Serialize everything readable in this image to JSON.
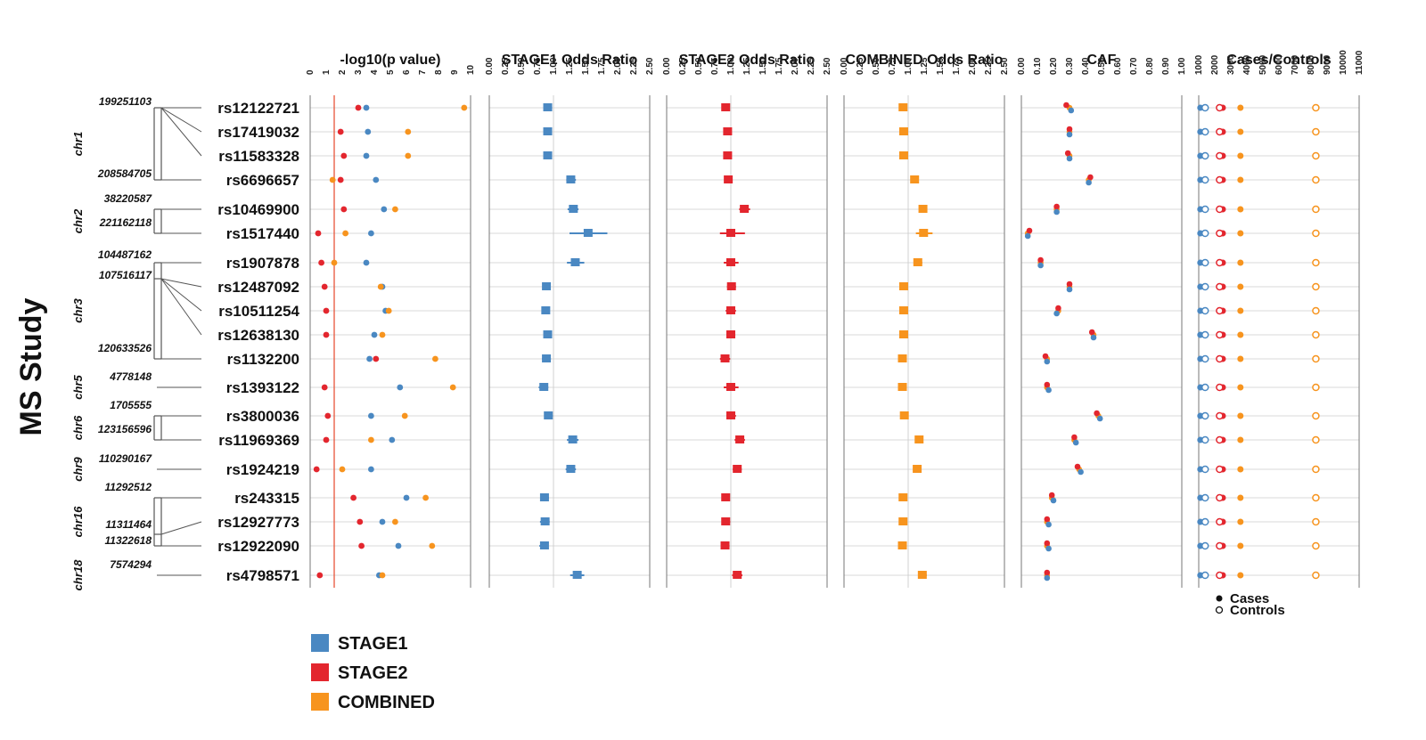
{
  "study_label": "MS Study",
  "colors": {
    "stage1": "#4a88c2",
    "stage2": "#e3262e",
    "combined": "#f7941e",
    "threshold": "#e8553a",
    "axis": "#777777",
    "grid": "#d9d9d9"
  },
  "legend": [
    {
      "label": "STAGE1",
      "color": "#4a88c2"
    },
    {
      "label": "STAGE2",
      "color": "#e3262e"
    },
    {
      "label": "COMBINED",
      "color": "#f7941e"
    }
  ],
  "cases_controls_legend": {
    "cases": "Cases",
    "controls": "Controls"
  },
  "chromosomes": [
    {
      "name": "chr1",
      "labels": [
        {
          "text": "199251103",
          "row": 0
        },
        {
          "text": "208584705",
          "row": 3
        }
      ]
    },
    {
      "name": "chr2",
      "labels": [
        {
          "text": "38220587",
          "row": 4
        },
        {
          "text": "221162118",
          "row": 5
        }
      ]
    },
    {
      "name": "chr3",
      "labels": [
        {
          "text": "104487162",
          "row": 6
        },
        {
          "text": "107516117",
          "row": 7
        },
        {
          "text": "120633526",
          "row": 10
        }
      ]
    },
    {
      "name": "chr5",
      "labels": [
        {
          "text": "4778148",
          "row": 11
        }
      ]
    },
    {
      "name": "chr6",
      "labels": [
        {
          "text": "1705555",
          "row": 12
        },
        {
          "text": "123156596",
          "row": 13
        }
      ]
    },
    {
      "name": "chr9",
      "labels": [
        {
          "text": "110290167",
          "row": 14
        }
      ]
    },
    {
      "name": "chr16",
      "labels": [
        {
          "text": "11292512",
          "row": 15
        },
        {
          "text": "11311464",
          "row": 16
        },
        {
          "text": "11322618",
          "row": 17
        }
      ]
    },
    {
      "name": "chr18",
      "labels": [
        {
          "text": "7574294",
          "row": 18
        }
      ]
    }
  ],
  "chart_data": [
    {
      "type": "scatter",
      "title": "-log10(p value)",
      "xlim": [
        0,
        10
      ],
      "xticks": [
        "0",
        "1",
        "2",
        "3",
        "4",
        "5",
        "6",
        "7",
        "8",
        "9",
        "10"
      ],
      "threshold": 1.5,
      "categories": [
        "rs12122721",
        "rs17419032",
        "rs11583328",
        "rs6696657",
        "rs10469900",
        "rs1517440",
        "rs1907878",
        "rs12487092",
        "rs10511254",
        "rs12638130",
        "rs1132200",
        "rs1393122",
        "rs3800036",
        "rs11969369",
        "rs1924219",
        "rs243315",
        "rs12927773",
        "rs12922090",
        "rs4798571"
      ],
      "series": [
        {
          "name": "STAGE1",
          "values": [
            3.5,
            3.6,
            3.5,
            4.1,
            4.6,
            3.8,
            3.5,
            4.5,
            4.7,
            4.0,
            3.7,
            5.6,
            3.8,
            5.1,
            3.8,
            6.0,
            4.5,
            5.5,
            4.3
          ]
        },
        {
          "name": "STAGE2",
          "values": [
            3.0,
            1.9,
            2.1,
            1.9,
            2.1,
            0.5,
            0.7,
            0.9,
            1.0,
            1.0,
            4.1,
            0.9,
            1.1,
            1.0,
            0.4,
            2.7,
            3.1,
            3.2,
            0.6
          ]
        },
        {
          "name": "COMBINED",
          "values": [
            9.6,
            6.1,
            6.1,
            1.4,
            5.3,
            2.2,
            1.5,
            4.4,
            4.9,
            4.5,
            7.8,
            8.9,
            5.9,
            3.8,
            2.0,
            7.2,
            5.3,
            7.6,
            4.5
          ]
        }
      ]
    },
    {
      "type": "scatter",
      "title": "STAGE1 Odds Ratio",
      "xlim": [
        0,
        2.5
      ],
      "xticks": [
        "0.00",
        "0.25",
        "0.50",
        "0.75",
        "1.00",
        "1.25",
        "1.50",
        "1.75",
        "2.00",
        "2.25",
        "2.50"
      ],
      "reference": 1.0,
      "series": [
        {
          "name": "STAGE1",
          "values": [
            0.91,
            0.91,
            0.91,
            1.27,
            1.31,
            1.54,
            1.34,
            0.89,
            0.88,
            0.91,
            0.89,
            0.85,
            0.92,
            1.3,
            1.27,
            0.86,
            0.87,
            0.86,
            1.37
          ],
          "ci_low": [
            0.85,
            0.86,
            0.86,
            1.2,
            1.22,
            1.25,
            1.21,
            0.84,
            0.82,
            0.86,
            0.82,
            0.77,
            0.86,
            1.21,
            1.19,
            0.8,
            0.79,
            0.78,
            1.26
          ],
          "ci_high": [
            0.98,
            0.97,
            0.96,
            1.35,
            1.39,
            1.84,
            1.48,
            0.95,
            0.94,
            0.97,
            0.96,
            0.92,
            0.99,
            1.39,
            1.35,
            0.93,
            0.94,
            0.92,
            1.48
          ]
        }
      ]
    },
    {
      "type": "scatter",
      "title": "STAGE2 Odds Ratio",
      "xlim": [
        0,
        2.5
      ],
      "xticks": [
        "0.00",
        "0.25",
        "0.50",
        "0.75",
        "1.00",
        "1.25",
        "1.50",
        "1.75",
        "2.00",
        "2.25",
        "2.50"
      ],
      "reference": 1.0,
      "series": [
        {
          "name": "STAGE2",
          "values": [
            0.92,
            0.95,
            0.95,
            0.96,
            1.21,
            1.0,
            1.0,
            1.01,
            1.0,
            1.0,
            0.91,
            1.0,
            1.0,
            1.14,
            1.1,
            0.92,
            0.92,
            0.91,
            1.1
          ],
          "ci_low": [
            0.87,
            0.9,
            0.9,
            0.91,
            1.13,
            0.83,
            0.89,
            0.94,
            0.92,
            0.93,
            0.83,
            0.89,
            0.93,
            1.06,
            1.03,
            0.86,
            0.86,
            0.85,
            1.02
          ],
          "ci_high": [
            0.98,
            1.01,
            1.01,
            1.02,
            1.3,
            1.22,
            1.12,
            1.08,
            1.08,
            1.07,
            0.99,
            1.12,
            1.08,
            1.22,
            1.17,
            0.98,
            0.99,
            0.98,
            1.18
          ]
        }
      ]
    },
    {
      "type": "scatter",
      "title": "COMBINED Odds Ratio",
      "xlim": [
        0,
        2.5
      ],
      "xticks": [
        "0.00",
        "0.25",
        "0.50",
        "0.75",
        "1.00",
        "1.25",
        "1.50",
        "1.75",
        "2.00",
        "2.25",
        "2.50"
      ],
      "reference": 1.0,
      "series": [
        {
          "name": "COMBINED",
          "values": [
            0.92,
            0.93,
            0.93,
            1.1,
            1.23,
            1.24,
            1.15,
            0.93,
            0.93,
            0.93,
            0.91,
            0.91,
            0.94,
            1.17,
            1.14,
            0.92,
            0.92,
            0.91,
            1.22
          ],
          "ci_low": [
            0.89,
            0.9,
            0.9,
            1.06,
            1.18,
            1.12,
            1.09,
            0.89,
            0.89,
            0.89,
            0.87,
            0.86,
            0.9,
            1.12,
            1.09,
            0.88,
            0.88,
            0.87,
            1.16
          ],
          "ci_high": [
            0.96,
            0.97,
            0.96,
            1.14,
            1.28,
            1.38,
            1.22,
            0.97,
            0.97,
            0.97,
            0.96,
            0.95,
            0.98,
            1.22,
            1.19,
            0.96,
            0.96,
            0.95,
            1.29
          ]
        }
      ]
    },
    {
      "type": "scatter",
      "title": "CAF",
      "xlim": [
        0,
        1
      ],
      "xticks": [
        "0.00",
        "0.10",
        "0.20",
        "0.30",
        "0.40",
        "0.50",
        "0.60",
        "0.70",
        "0.80",
        "0.90",
        "1.00"
      ],
      "series": [
        {
          "name": "STAGE1",
          "values": [
            0.31,
            0.3,
            0.3,
            0.42,
            0.22,
            0.04,
            0.12,
            0.3,
            0.22,
            0.45,
            0.16,
            0.17,
            0.49,
            0.34,
            0.37,
            0.2,
            0.17,
            0.17,
            0.16
          ]
        },
        {
          "name": "STAGE2",
          "values": [
            0.28,
            0.3,
            0.29,
            0.43,
            0.22,
            0.05,
            0.12,
            0.3,
            0.23,
            0.44,
            0.15,
            0.16,
            0.47,
            0.33,
            0.35,
            0.19,
            0.16,
            0.16,
            0.16
          ]
        },
        {
          "name": "COMBINED",
          "values": [
            0.3,
            0.3,
            0.3,
            0.42,
            0.22,
            0.04,
            0.12,
            0.3,
            0.23,
            0.45,
            0.16,
            0.16,
            0.48,
            0.33,
            0.36,
            0.19,
            0.16,
            0.16,
            0.16
          ]
        }
      ]
    },
    {
      "type": "scatter",
      "title": "Cases/Controls",
      "xlim": [
        1000,
        11000
      ],
      "xticks": [
        "1000",
        "2000",
        "3000",
        "4000",
        "5000",
        "6000",
        "7000",
        "8000",
        "9000",
        "10000",
        "11000"
      ],
      "series": [
        {
          "name": "STAGE1",
          "cases": 1100,
          "controls": 1400
        },
        {
          "name": "STAGE2",
          "cases": 2500,
          "controls": 2300
        },
        {
          "name": "COMBINED",
          "cases": 3600,
          "controls": 8300
        }
      ]
    }
  ]
}
